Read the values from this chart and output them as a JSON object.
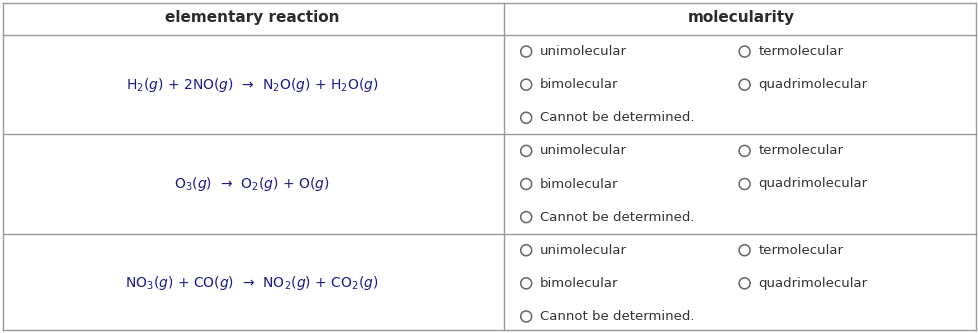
{
  "title_row": [
    "elementary reaction",
    "molecularity"
  ],
  "reactions": [
    "H$_2$($g$) + 2NO($g$)  →  N$_2$O($g$) + H$_2$O($g$)",
    "O$_3$($g$)  →  O$_2$($g$) + O($g$)",
    "NO$_3$($g$) + CO($g$)  →  NO$_2$($g$) + CO$_2$($g$)"
  ],
  "options_left": [
    "unimolecular",
    "bimolecular"
  ],
  "options_right": [
    "termolecular",
    "quadrimolecular"
  ],
  "option_last": "Cannot be determined.",
  "reaction_color": "#1a1a8c",
  "text_color": "#333333",
  "header_color": "#2b2b2b",
  "border_color": "#999999",
  "bg_color": "#ffffff",
  "col_split": 0.515,
  "fig_width": 9.79,
  "fig_height": 3.33,
  "dpi": 100
}
